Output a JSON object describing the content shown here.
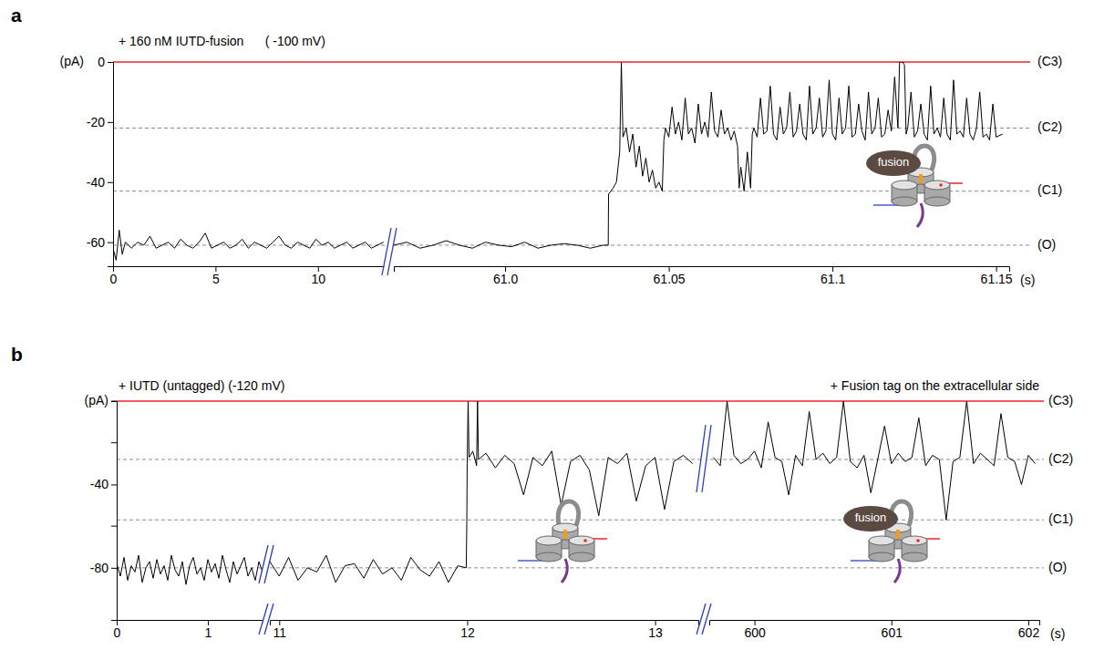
{
  "chart_data": [
    {
      "type": "line",
      "panel_label": "a",
      "title": "+ 160 nM IUTD-fusion      ( -100 mV)",
      "ylabel": "(pA)",
      "xlabel": "(s)",
      "color": "#000000",
      "ylim": [
        -68,
        0
      ],
      "yticks": [
        0,
        -20,
        -40,
        -60
      ],
      "levels": [
        {
          "name": "(C3)",
          "value": 0,
          "color": "#e8262a",
          "line_style": "solid"
        },
        {
          "name": "(C2)",
          "value": -22,
          "color": "#808080",
          "line_style": "dashed"
        },
        {
          "name": "(C1)",
          "value": -43,
          "color": "#808080",
          "line_style": "dashed"
        },
        {
          "name": "(O)",
          "value": -61,
          "color": "#808080",
          "line_style": "dashed"
        }
      ],
      "insets": [
        {
          "label": "fusion"
        }
      ],
      "segments": [
        {
          "xlim": [
            0,
            13.3
          ],
          "xticks": [
            0,
            5,
            10
          ],
          "x": [
            0,
            0.15,
            0.3,
            0.45,
            0.6,
            0.9,
            1.2,
            1.5,
            1.8,
            2.1,
            2.4,
            2.7,
            3.0,
            3.3,
            3.6,
            3.9,
            4.2,
            4.5,
            4.8,
            5.1,
            5.4,
            5.7,
            6.0,
            6.3,
            6.6,
            6.9,
            7.2,
            7.5,
            7.8,
            8.1,
            8.4,
            8.7,
            9.0,
            9.3,
            9.6,
            9.9,
            10.2,
            10.5,
            10.8,
            11.1,
            11.4,
            11.7,
            12.0,
            12.3,
            12.6,
            12.9,
            13.2
          ],
          "values": [
            -62,
            -66,
            -56,
            -64,
            -60,
            -62,
            -60,
            -61,
            -58,
            -62,
            -61,
            -60,
            -62,
            -59,
            -61,
            -62,
            -60,
            -57,
            -62,
            -61,
            -60,
            -62,
            -61,
            -59,
            -62,
            -60,
            -61,
            -62,
            -60,
            -58,
            -61,
            -62,
            -60,
            -61,
            -62,
            -59,
            -61,
            -60,
            -62,
            -61,
            -60,
            -62,
            -61,
            -60,
            -62,
            -61,
            -60
          ]
        },
        {
          "xlim": [
            60.966,
            61.154
          ],
          "xticks": [
            {
              "value": 61,
              "label": "61.0"
            },
            61.05,
            61.1,
            61.15
          ],
          "x": [
            60.966,
            60.97,
            60.974,
            60.978,
            60.982,
            60.986,
            60.99,
            60.994,
            60.998,
            61.002,
            61.006,
            61.01,
            61.014,
            61.018,
            61.022,
            61.026,
            61.03,
            61.0315,
            61.0316,
            61.033,
            61.034,
            61.035,
            61.0355,
            61.036,
            61.037,
            61.038,
            61.039,
            61.04,
            61.041,
            61.042,
            61.043,
            61.044,
            61.045,
            61.046,
            61.047,
            61.048,
            61.0485,
            61.049,
            61.05,
            61.051,
            61.052,
            61.053,
            61.054,
            61.055,
            61.056,
            61.057,
            61.058,
            61.059,
            61.06,
            61.061,
            61.062,
            61.063,
            61.064,
            61.065,
            61.066,
            61.067,
            61.068,
            61.069,
            61.07,
            61.071,
            61.0715,
            61.072,
            61.073,
            61.074,
            61.075,
            61.0755,
            61.076,
            61.077,
            61.078,
            61.079,
            61.08,
            61.081,
            61.082,
            61.083,
            61.084,
            61.085,
            61.086,
            61.087,
            61.088,
            61.089,
            61.09,
            61.091,
            61.092,
            61.093,
            61.094,
            61.095,
            61.096,
            61.097,
            61.098,
            61.099,
            61.1,
            61.101,
            61.102,
            61.103,
            61.104,
            61.105,
            61.106,
            61.107,
            61.108,
            61.109,
            61.11,
            61.111,
            61.112,
            61.113,
            61.114,
            61.115,
            61.116,
            61.117,
            61.118,
            61.119,
            61.12,
            61.1205,
            61.1215,
            61.122,
            61.1225,
            61.123,
            61.124,
            61.125,
            61.126,
            61.127,
            61.128,
            61.129,
            61.13,
            61.131,
            61.132,
            61.133,
            61.134,
            61.135,
            61.136,
            61.137,
            61.138,
            61.139,
            61.14,
            61.141,
            61.142,
            61.143,
            61.144,
            61.145,
            61.146,
            61.147,
            61.148,
            61.149,
            61.15,
            61.152
          ],
          "values": [
            -61,
            -60,
            -62,
            -61,
            -59.5,
            -61,
            -62,
            -60,
            -61,
            -61.5,
            -60,
            -62,
            -61,
            -60.5,
            -61,
            -62,
            -61,
            -61,
            -44,
            -42,
            -40,
            -30,
            0,
            -25,
            -22,
            -30,
            -24,
            -35,
            -28,
            -38,
            -32,
            -40,
            -36,
            -42,
            -40,
            -43,
            -26,
            -22,
            -25,
            -15,
            -24,
            -20,
            -26,
            -12,
            -24,
            -22,
            -27,
            -14,
            -24,
            -20,
            -25,
            -10,
            -23,
            -25,
            -16,
            -24,
            -22,
            -26,
            -23,
            -28,
            -42,
            -35,
            -43,
            -30,
            -42,
            -24,
            -22,
            -25,
            -12,
            -24,
            -23,
            -8,
            -24,
            -26,
            -15,
            -24,
            -22,
            -10,
            -25,
            -23,
            -14,
            -24,
            -26,
            -8,
            -24,
            -22,
            -12,
            -25,
            -23,
            -6,
            -24,
            -26,
            -12,
            -24,
            -22,
            -8,
            -25,
            -24,
            -14,
            -23,
            -26,
            -10,
            -24,
            -22,
            -12,
            -25,
            -24,
            -16,
            -23,
            -5,
            -22,
            0,
            0,
            -1,
            -24,
            -22,
            -10,
            -25,
            -23,
            -14,
            -24,
            -26,
            -8,
            -24,
            -22,
            -25,
            -12,
            -24,
            -26,
            -6,
            -24,
            -23,
            -25,
            -12,
            -24,
            -26,
            -22,
            -10,
            -25,
            -24,
            -26,
            -14,
            -25,
            -24
          ]
        }
      ]
    },
    {
      "type": "line",
      "panel_label": "b",
      "title": "+ IUTD (untagged) (-120 mV)",
      "annotation": "+ Fusion tag on the extracellular side",
      "ylabel": "(pA)",
      "xlabel": "(s)",
      "color": "#000000",
      "ylim": [
        -105,
        0
      ],
      "yticks": [
        -40,
        -80
      ],
      "minor_yticks": [
        0,
        -20,
        -60
      ],
      "levels": [
        {
          "name": "(C3)",
          "value": 0,
          "color": "#e8262a",
          "line_style": "solid"
        },
        {
          "name": "(C2)",
          "value": -28,
          "color": "#808080",
          "line_style": "dashed"
        },
        {
          "name": "(C1)",
          "value": -57,
          "color": "#808080",
          "line_style": "dashed"
        },
        {
          "name": "(O)",
          "value": -80,
          "color": "#808080",
          "line_style": "dashed"
        }
      ],
      "insets": [
        {
          "label": null
        },
        {
          "label": "fusion"
        }
      ],
      "segments": [
        {
          "xlim": [
            0,
            1.6
          ],
          "xticks": [
            0,
            1
          ],
          "x": [
            0,
            0.04,
            0.08,
            0.12,
            0.16,
            0.2,
            0.24,
            0.28,
            0.32,
            0.36,
            0.4,
            0.44,
            0.48,
            0.52,
            0.56,
            0.6,
            0.64,
            0.68,
            0.72,
            0.76,
            0.8,
            0.84,
            0.88,
            0.92,
            0.96,
            1,
            1.04,
            1.08,
            1.12,
            1.16,
            1.2,
            1.24,
            1.28,
            1.32,
            1.36,
            1.4,
            1.44,
            1.48,
            1.52,
            1.56,
            1.6
          ],
          "values": [
            -78,
            -84,
            -75,
            -86,
            -79,
            -82,
            -74,
            -87,
            -80,
            -77,
            -85,
            -76,
            -83,
            -79,
            -86,
            -74,
            -81,
            -84,
            -77,
            -88,
            -79,
            -75,
            -83,
            -80,
            -86,
            -76,
            -82,
            -78,
            -85,
            -74,
            -81,
            -87,
            -77,
            -83,
            -79,
            -75,
            -84,
            -80,
            -86,
            -77,
            -82
          ]
        },
        {
          "xlim": [
            10.95,
            13.23
          ],
          "xticks": [
            11,
            12,
            13
          ],
          "x": [
            10.95,
            11,
            11.05,
            11.1,
            11.15,
            11.2,
            11.25,
            11.3,
            11.35,
            11.4,
            11.45,
            11.5,
            11.55,
            11.6,
            11.65,
            11.7,
            11.75,
            11.8,
            11.85,
            11.9,
            11.95,
            11.995,
            11.998,
            12,
            12.005,
            12.01,
            12.03,
            12.05,
            12.055,
            12.06,
            12.1,
            12.15,
            12.2,
            12.25,
            12.3,
            12.35,
            12.4,
            12.45,
            12.5,
            12.55,
            12.6,
            12.65,
            12.7,
            12.75,
            12.8,
            12.85,
            12.9,
            12.95,
            13,
            13.05,
            13.1,
            13.15,
            13.2
          ],
          "values": [
            -77,
            -84,
            -75,
            -86,
            -80,
            -82,
            -74,
            -87,
            -79,
            -78,
            -85,
            -76,
            -83,
            -80,
            -86,
            -75,
            -81,
            -84,
            -77,
            -87,
            -79,
            -80,
            -58,
            -30,
            0,
            -27,
            -24,
            -31,
            0,
            -28,
            -25,
            -32,
            -26,
            -30,
            -45,
            -27,
            -31,
            -24,
            -50,
            -29,
            -26,
            -33,
            -55,
            -27,
            -30,
            -25,
            -48,
            -31,
            -27,
            -52,
            -29,
            -26,
            -30
          ]
        },
        {
          "xlim": [
            599.67,
            602.08
          ],
          "xticks": [
            600,
            601,
            602
          ],
          "x": [
            599.7,
            599.75,
            599.8,
            599.85,
            599.9,
            599.95,
            600,
            600.05,
            600.1,
            600.15,
            600.2,
            600.25,
            600.3,
            600.35,
            600.4,
            600.45,
            600.5,
            600.55,
            600.6,
            600.65,
            600.7,
            600.75,
            600.8,
            600.85,
            600.9,
            600.95,
            601,
            601.05,
            601.1,
            601.15,
            601.2,
            601.25,
            601.3,
            601.35,
            601.4,
            601.45,
            601.5,
            601.55,
            601.6,
            601.65,
            601.7,
            601.75,
            601.8,
            601.85,
            601.9,
            601.95,
            602,
            602.05
          ],
          "values": [
            -27,
            -31,
            0,
            -26,
            -30,
            -28,
            -24,
            -32,
            -10,
            -27,
            -29,
            -45,
            -26,
            -31,
            -5,
            -28,
            -25,
            -30,
            -27,
            0,
            -29,
            -32,
            -26,
            -44,
            -28,
            -12,
            -30,
            -25,
            -29,
            -27,
            -8,
            -31,
            -26,
            -28,
            -57,
            -29,
            -27,
            0,
            -30,
            -25,
            -28,
            -31,
            -6,
            -27,
            -29,
            -40,
            -26,
            -30
          ]
        }
      ]
    }
  ]
}
